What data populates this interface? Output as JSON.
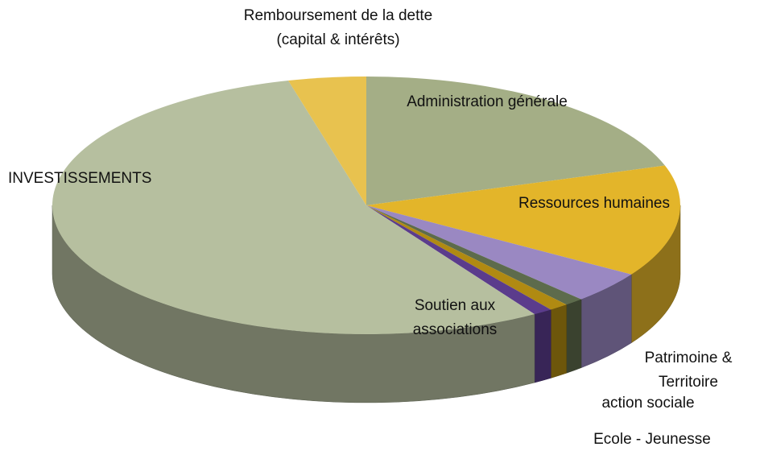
{
  "chart_data": {
    "type": "pie3d",
    "categories": [
      "Administration générale",
      "Ressources humaines",
      "Patrimoine & Territoire",
      "action sociale",
      "Ecole - Jeunesse",
      "Soutien aux associations",
      "INVESTISSEMENTS",
      "Remboursement de la dette (capital & intérêts)"
    ],
    "values": [
      20,
      14,
      4,
      1,
      1,
      1,
      55,
      4
    ],
    "colors": [
      "#a4ae86",
      "#e3b52a",
      "#9a88c2",
      "#5d6b4c",
      "#b08a12",
      "#5b3c8c",
      "#b6bf9f",
      "#e8c24f"
    ]
  }
}
